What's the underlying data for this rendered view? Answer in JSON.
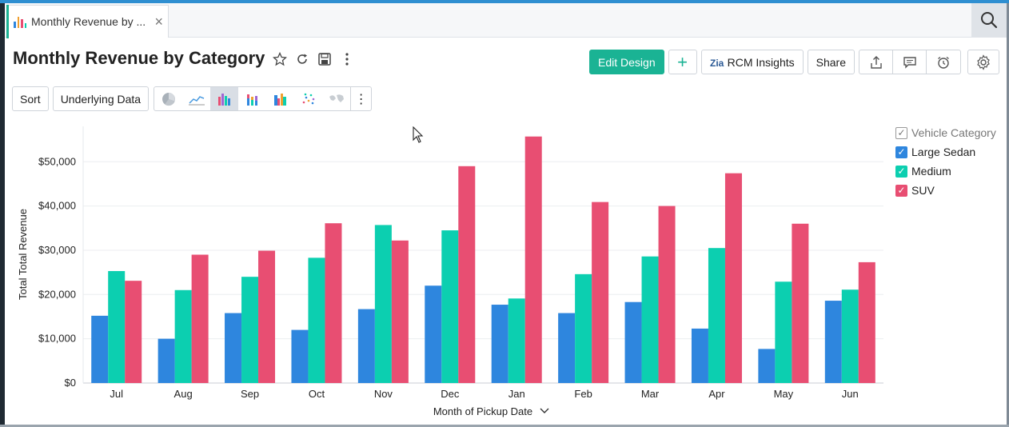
{
  "tab": {
    "title": "Monthly Revenue by ...",
    "close": "×"
  },
  "header": {
    "title": "Monthly Revenue by Category"
  },
  "actions": {
    "edit_design": "Edit Design",
    "add": "+",
    "insights": "RCM Insights",
    "share": "Share"
  },
  "toolbar": {
    "sort": "Sort",
    "underlying_data": "Underlying Data",
    "more": "⋮"
  },
  "icons": {
    "star": "star-icon",
    "refresh": "refresh-icon",
    "save": "save-icon",
    "more": "more-vertical-icon",
    "search": "search-icon",
    "export": "export-icon",
    "comment": "comment-icon",
    "alarm": "alarm-icon",
    "settings": "gear-icon"
  },
  "colors": {
    "accent": "#1ab394",
    "large_sedan": "#2e86de",
    "medium": "#0ccfb0",
    "suv": "#e84e72",
    "tab_accent": "#1ab394"
  },
  "legend": {
    "title": "Vehicle Category",
    "items": [
      {
        "label": "Large Sedan",
        "color": "#2e86de"
      },
      {
        "label": "Medium",
        "color": "#0ccfb0"
      },
      {
        "label": "SUV",
        "color": "#e84e72"
      }
    ]
  },
  "chart_data": {
    "type": "bar",
    "title": "",
    "xlabel": "Month of Pickup Date",
    "ylabel": "Total Total Revenue",
    "categories": [
      "Jul",
      "Aug",
      "Sep",
      "Oct",
      "Nov",
      "Dec",
      "Jan",
      "Feb",
      "Mar",
      "Apr",
      "May",
      "Jun"
    ],
    "ylim": [
      0,
      58000
    ],
    "yticks": [
      0,
      10000,
      20000,
      30000,
      40000,
      50000
    ],
    "ytick_labels": [
      "$0",
      "$10,000",
      "$20,000",
      "$30,000",
      "$40,000",
      "$50,000"
    ],
    "grid": true,
    "legend_position": "top-right",
    "series": [
      {
        "name": "Large Sedan",
        "color": "#2e86de",
        "values": [
          15200,
          10000,
          15800,
          12000,
          16700,
          22000,
          17700,
          15800,
          18300,
          12300,
          7700,
          18600
        ]
      },
      {
        "name": "Medium",
        "color": "#0ccfb0",
        "values": [
          25300,
          21000,
          24000,
          28300,
          35700,
          34500,
          19100,
          24600,
          28600,
          30500,
          22900,
          21100
        ]
      },
      {
        "name": "SUV",
        "color": "#e84e72",
        "values": [
          23100,
          29000,
          29900,
          36100,
          32200,
          49000,
          55700,
          40900,
          40000,
          47400,
          36000,
          27300
        ]
      }
    ]
  }
}
